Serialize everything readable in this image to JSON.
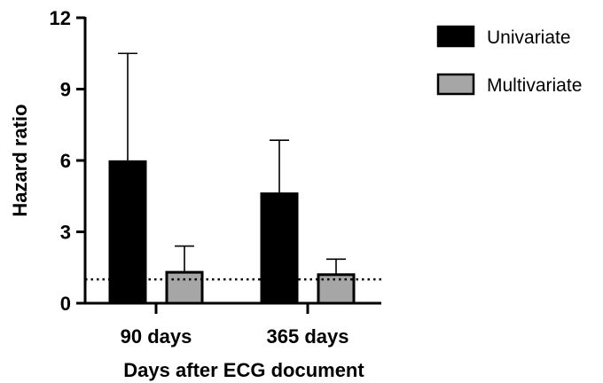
{
  "chart_data": {
    "type": "bar",
    "title": "",
    "xlabel": "Days after ECG document",
    "ylabel": "Hazard ratio",
    "ylim": [
      0,
      12
    ],
    "yticks": [
      0,
      3,
      6,
      9,
      12
    ],
    "categories": [
      "90 days",
      "365 days"
    ],
    "series": [
      {
        "name": "Univariate",
        "values": [
          5.95,
          4.6
        ],
        "upper_error": [
          10.5,
          6.85
        ],
        "color": "#000000"
      },
      {
        "name": "Multivariate",
        "values": [
          1.3,
          1.2
        ],
        "upper_error": [
          2.4,
          1.85
        ],
        "color": "#a6a6a6"
      }
    ],
    "reference_line": {
      "y": 1,
      "style": "dotted"
    },
    "grid": false,
    "legend_position": "top-right"
  }
}
